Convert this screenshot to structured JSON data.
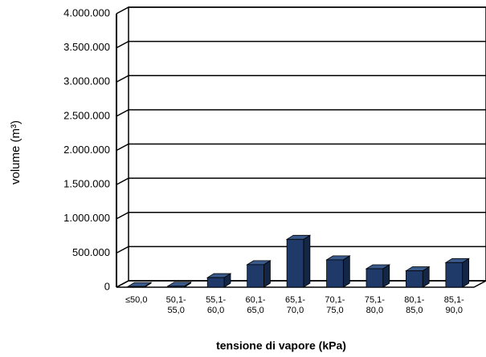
{
  "chart_data": {
    "type": "bar3d",
    "x_label": "tensione di vapore (kPa)",
    "y_label": "volume (m³)",
    "categories": [
      "≤50,0",
      "50,1-55,0",
      "55,1-60,0",
      "60,1-65,0",
      "65,1-70,0",
      "70,1-75,0",
      "75,1-80,0",
      "80,1-85,0",
      "85,1-90,0"
    ],
    "values": [
      10000,
      15000,
      140000,
      330000,
      700000,
      400000,
      270000,
      240000,
      360000
    ],
    "color": "#1f3a68",
    "ylim": [
      0,
      4000000
    ],
    "yticks": [
      0,
      {
        "value": 500000,
        "label": "500.000"
      },
      {
        "value": 1000000,
        "label": "1.000.000"
      },
      {
        "value": 1500000,
        "label": "1.500.000"
      },
      {
        "value": 2000000,
        "label": "2.000.000"
      },
      {
        "value": 2500000,
        "label": "2.500.000"
      },
      {
        "value": 3000000,
        "label": "3.000.000"
      },
      {
        "value": 3500000,
        "label": "3.500.000"
      },
      {
        "value": 4000000,
        "label": "4.000.000"
      }
    ],
    "grid": true
  }
}
